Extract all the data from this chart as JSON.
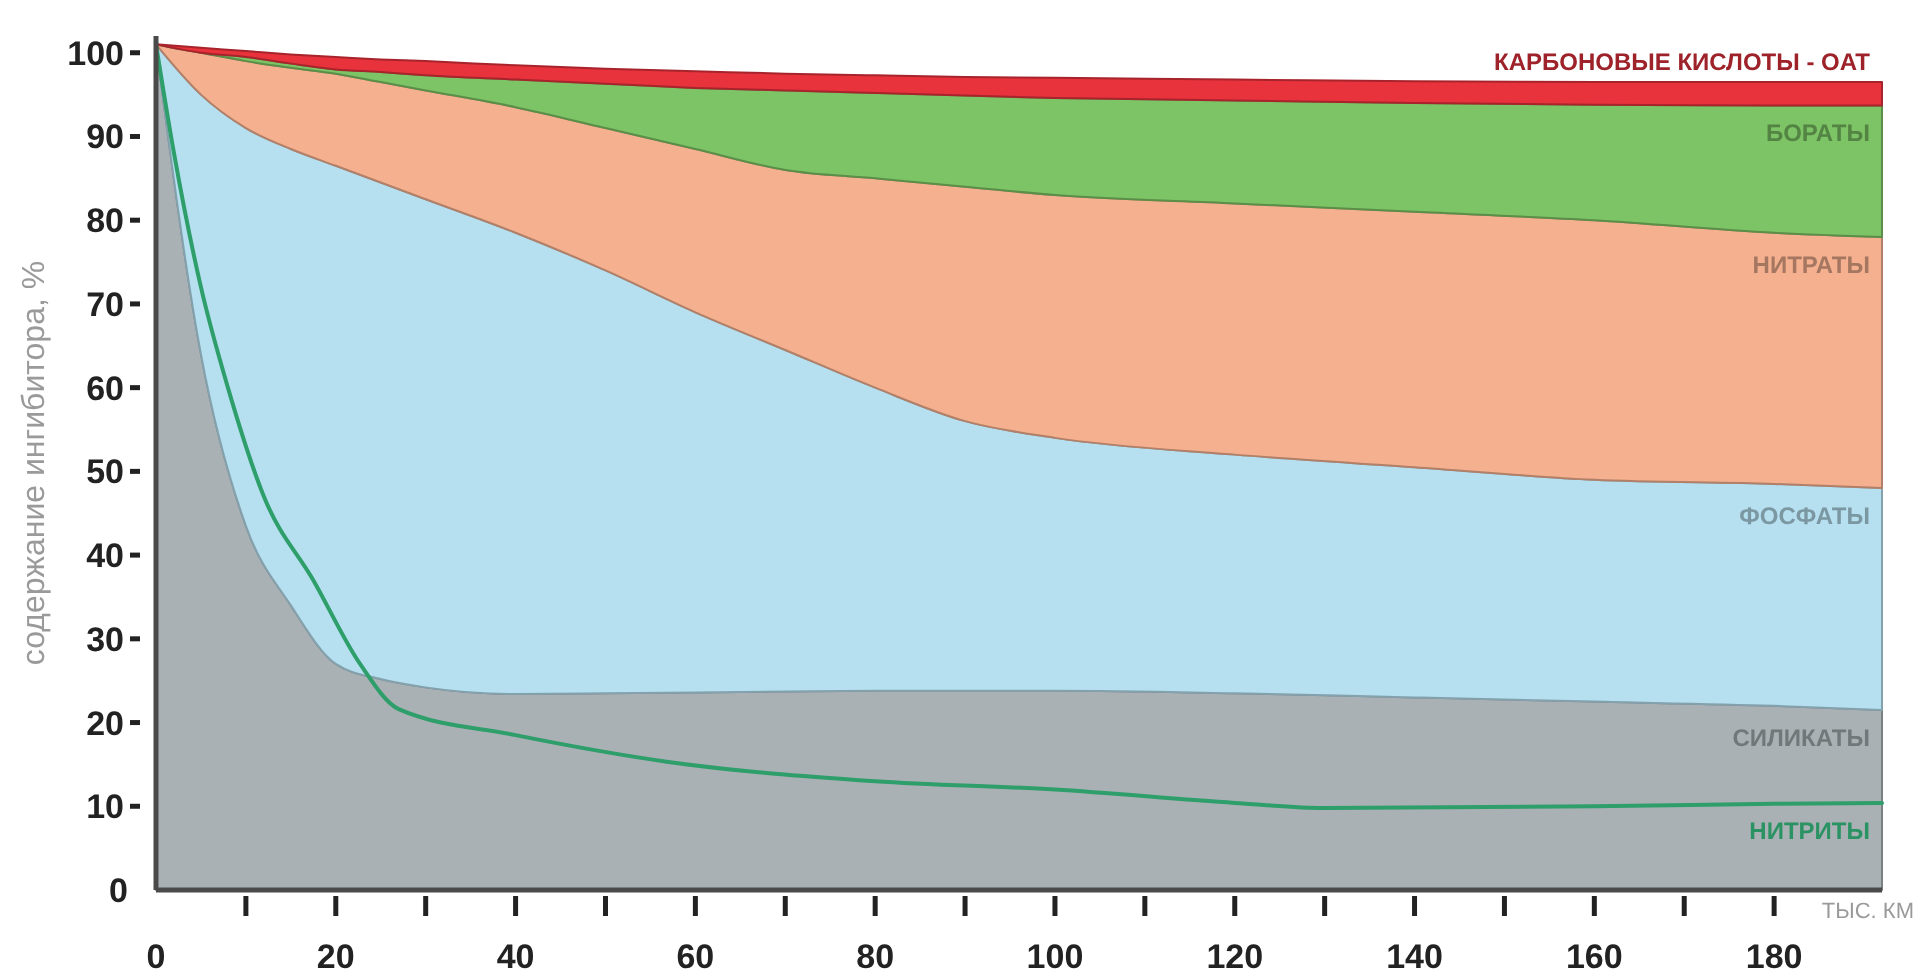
{
  "chart_data": {
    "type": "area",
    "ylabel": "содержание ингибитора, %",
    "xlabel": "ТЫС. КМ",
    "xlim": [
      0,
      192
    ],
    "ylim": [
      0,
      102
    ],
    "xticks": [
      0,
      {
        "value": 10,
        "label": null
      },
      20,
      {
        "value": 30,
        "label": null
      },
      40,
      {
        "value": 50,
        "label": null
      },
      60,
      {
        "value": 70,
        "label": null
      },
      80,
      {
        "value": 90,
        "label": null
      },
      100,
      {
        "value": 110,
        "label": null
      },
      120,
      {
        "value": 130,
        "label": null
      },
      140,
      {
        "value": 150,
        "label": null
      },
      160,
      {
        "value": 170,
        "label": null
      },
      180
    ],
    "yticks": [
      0,
      10,
      20,
      30,
      40,
      50,
      60,
      70,
      80,
      90,
      100
    ],
    "stacked": true,
    "x": [
      0,
      5,
      10,
      15,
      20,
      25,
      30,
      40,
      50,
      60,
      70,
      80,
      90,
      100,
      120,
      140,
      160,
      180,
      192
    ],
    "series": [
      {
        "name": "СИЛИКАТЫ",
        "color": "#a9b1b5",
        "values": [
          101,
          64,
          43.5,
          34,
          27,
          25.2,
          24.2,
          23.4,
          23.5,
          23.6,
          23.7,
          23.8,
          23.8,
          23.8,
          23.5,
          23,
          22.5,
          22,
          21.5
        ]
      },
      {
        "name": "ФОСФАТЫ",
        "color": "#b6e0f0",
        "values": [
          0,
          31,
          47.5,
          54.5,
          59.5,
          59.3,
          58.3,
          55.1,
          50.5,
          45.4,
          40.8,
          36.2,
          32.2,
          30.2,
          28.5,
          27.5,
          26.5,
          26.5,
          26.5
        ]
      },
      {
        "name": "НИТРАТЫ",
        "color": "#f5b08f",
        "values": [
          0,
          5,
          8,
          9.7,
          11,
          12,
          13,
          15,
          17,
          19.5,
          21.5,
          25,
          28,
          29,
          30,
          30.5,
          31,
          30,
          30
        ]
      },
      {
        "name": "БОРАТЫ",
        "color": "#7cc465",
        "values": [
          0,
          0,
          0.5,
          0.5,
          0.5,
          1.2,
          1.8,
          3.3,
          5.3,
          7.3,
          9.5,
          10.2,
          10.9,
          11.6,
          12.3,
          13,
          13.8,
          15.2,
          15.7
        ]
      },
      {
        "name": "КАРБОНОВЫЕ КИСЛОТЫ - OAT",
        "color": "#e8323c",
        "values": [
          0,
          0.6,
          0.7,
          1.1,
          1.5,
          1.5,
          1.7,
          1.7,
          1.8,
          2,
          2,
          2.1,
          2.2,
          2.4,
          2.5,
          2.6,
          2.7,
          2.8,
          2.8
        ]
      },
      {
        "name": "НИТРИТЫ",
        "type": "line",
        "color": "#2e9e6a",
        "x": [
          0,
          2,
          5,
          8,
          12,
          17.5,
          22.7,
          27,
          40,
          57,
          80,
          100,
          120,
          130,
          160,
          180,
          192
        ],
        "values": [
          101,
          88,
          72,
          60,
          47,
          37,
          27,
          21.6,
          18.5,
          15.3,
          13,
          12,
          10.4,
          9.8,
          10,
          10.3,
          10.4
        ]
      }
    ]
  }
}
